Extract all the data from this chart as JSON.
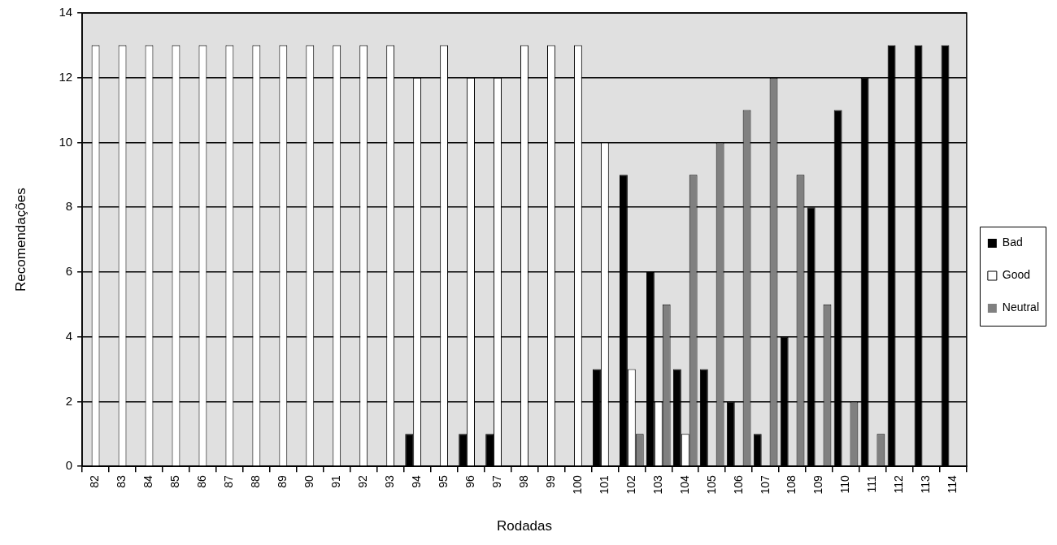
{
  "chart_data": {
    "type": "bar",
    "xlabel": "Rodadas",
    "ylabel": "Recomendações",
    "categories": [
      "82",
      "83",
      "84",
      "85",
      "86",
      "87",
      "88",
      "89",
      "90",
      "91",
      "92",
      "93",
      "94",
      "95",
      "96",
      "97",
      "98",
      "99",
      "100",
      "101",
      "102",
      "103",
      "104",
      "105",
      "106",
      "107",
      "108",
      "109",
      "110",
      "111",
      "112",
      "113",
      "114"
    ],
    "series": [
      {
        "name": "Bad",
        "color": "#000000",
        "values": [
          0,
          0,
          0,
          0,
          0,
          0,
          0,
          0,
          0,
          0,
          0,
          0,
          1,
          0,
          1,
          1,
          0,
          0,
          0,
          3,
          9,
          6,
          3,
          3,
          2,
          1,
          4,
          8,
          11,
          12,
          13,
          13,
          13
        ]
      },
      {
        "name": "Good",
        "color": "#ffffff",
        "values": [
          13,
          13,
          13,
          13,
          13,
          13,
          13,
          13,
          13,
          13,
          13,
          13,
          12,
          13,
          12,
          12,
          13,
          13,
          13,
          10,
          3,
          2,
          1,
          0,
          0,
          0,
          0,
          0,
          0,
          0,
          0,
          0,
          0
        ]
      },
      {
        "name": "Neutral",
        "color": "#808080",
        "values": [
          0,
          0,
          0,
          0,
          0,
          0,
          0,
          0,
          0,
          0,
          0,
          0,
          0,
          0,
          0,
          0,
          0,
          0,
          0,
          0,
          1,
          5,
          9,
          10,
          11,
          12,
          9,
          5,
          2,
          1,
          0,
          0,
          0
        ]
      }
    ],
    "ylim": [
      0,
      14
    ],
    "yticks": [
      0,
      2,
      4,
      6,
      8,
      10,
      12,
      14
    ],
    "grid": "y",
    "legend": "right"
  }
}
